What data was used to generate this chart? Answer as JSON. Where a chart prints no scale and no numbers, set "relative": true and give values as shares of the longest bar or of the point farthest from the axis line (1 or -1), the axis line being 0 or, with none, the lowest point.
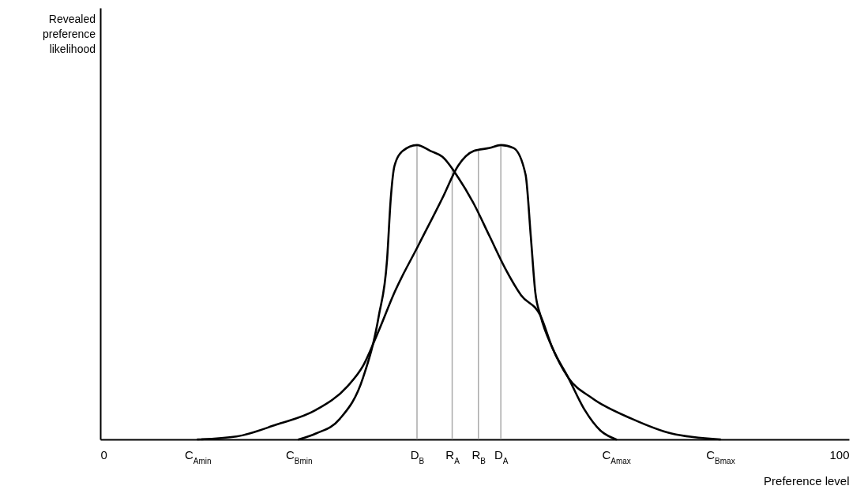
{
  "chart_data": {
    "type": "line",
    "relative": true,
    "xlabel": "Preference level",
    "annotations": [
      "Revealed preference likelihood"
    ],
    "grid": false,
    "marker": "none",
    "line_style": "solid",
    "xlim": [
      0,
      100
    ],
    "xticks": [
      {
        "value": 0,
        "label": "0"
      },
      {
        "value": 13.0,
        "label": "C$_{Amin}$"
      },
      {
        "value": 26.5,
        "label": "C$_{Bmin}$"
      },
      {
        "value": 42.3,
        "label": "D$_{B}$"
      },
      {
        "value": 47.0,
        "label": "R$_{A}$"
      },
      {
        "value": 50.5,
        "label": "R$_{B}$"
      },
      {
        "value": 53.5,
        "label": "D$_{A}$"
      },
      {
        "value": 68.9,
        "label": "C$_{Amax}$"
      },
      {
        "value": 82.8,
        "label": "C$_{Bmax}$"
      },
      {
        "value": 100,
        "label": "100"
      }
    ],
    "ref_lines": [
      {
        "axis": "x",
        "value": 42.3,
        "color": "#aaaaaa"
      },
      {
        "axis": "x",
        "value": 47.0,
        "color": "#aaaaaa"
      },
      {
        "axis": "x",
        "value": 50.5,
        "color": "#aaaaaa"
      },
      {
        "axis": "x",
        "value": 53.5,
        "color": "#aaaaaa"
      }
    ],
    "series": [
      {
        "color": "#000000",
        "x": [
          13.0,
          18.2,
          23.5,
          28.8,
          33.0,
          35.1,
          37.2,
          39.3,
          42.5,
          45.7,
          47.8,
          49.9,
          52.0,
          53.5,
          55.2,
          56.8,
          57.5,
          58.1,
          58.8,
          60.4,
          62.5,
          64.7,
          66.8,
          68.9
        ],
        "values": [
          0,
          0.01,
          0.05,
          0.1,
          0.18,
          0.25,
          0.37,
          0.5,
          0.66,
          0.82,
          0.93,
          0.98,
          0.99,
          1,
          0.99,
          0.9,
          0.69,
          0.5,
          0.42,
          0.31,
          0.21,
          0.1,
          0.03,
          0
        ]
      },
      {
        "color": "#000000",
        "x": [
          26.5,
          28.8,
          32.0,
          35.1,
          37.2,
          38.3,
          38.8,
          39.3,
          40.4,
          42.3,
          44.1,
          45.7,
          47.8,
          49.9,
          52.0,
          54.1,
          56.2,
          58.8,
          60.4,
          62.5,
          65.7,
          71.0,
          76.3,
          82.8
        ],
        "values": [
          0,
          0.02,
          0.07,
          0.21,
          0.42,
          0.61,
          0.82,
          0.93,
          0.98,
          1,
          0.98,
          0.96,
          0.89,
          0.8,
          0.69,
          0.58,
          0.49,
          0.42,
          0.31,
          0.21,
          0.14,
          0.07,
          0.02,
          0
        ]
      }
    ]
  }
}
